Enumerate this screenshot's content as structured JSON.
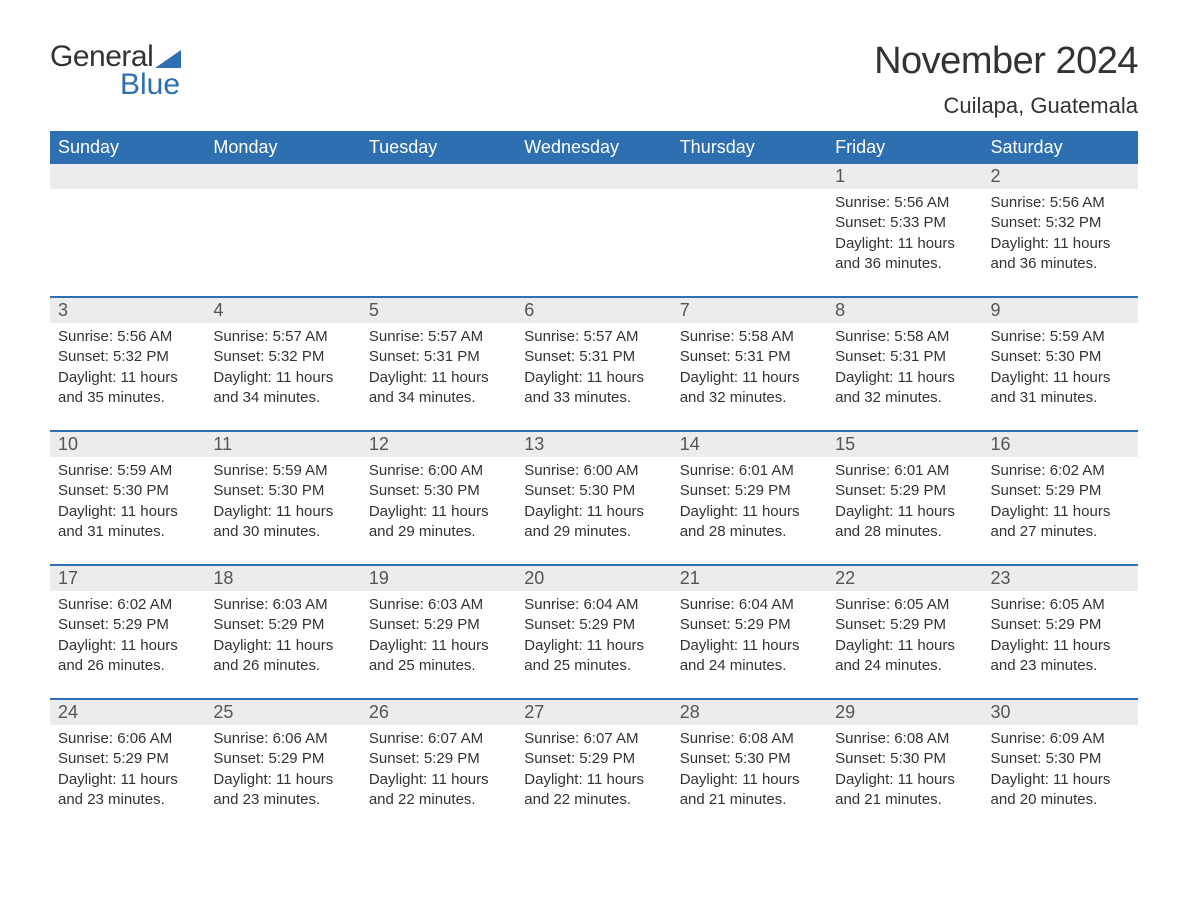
{
  "brand": {
    "part1": "General",
    "part2": "Blue"
  },
  "title": "November 2024",
  "location": "Cuilapa, Guatemala",
  "colors": {
    "header_bg": "#2d6fb1",
    "header_text": "#ffffff",
    "daynum_bg": "#ececec",
    "border": "#2d6fb1",
    "body_text": "#333333",
    "page_bg": "#ffffff"
  },
  "typography": {
    "title_fontsize": 38,
    "location_fontsize": 22,
    "header_fontsize": 18,
    "daynum_fontsize": 18,
    "cell_fontsize": 15,
    "font_family": "Arial"
  },
  "layout": {
    "columns": 7,
    "rows": 5
  },
  "weekdays": [
    "Sunday",
    "Monday",
    "Tuesday",
    "Wednesday",
    "Thursday",
    "Friday",
    "Saturday"
  ],
  "weeks": [
    [
      {
        "day": "",
        "sunrise": "",
        "sunset": "",
        "daylight": ""
      },
      {
        "day": "",
        "sunrise": "",
        "sunset": "",
        "daylight": ""
      },
      {
        "day": "",
        "sunrise": "",
        "sunset": "",
        "daylight": ""
      },
      {
        "day": "",
        "sunrise": "",
        "sunset": "",
        "daylight": ""
      },
      {
        "day": "",
        "sunrise": "",
        "sunset": "",
        "daylight": ""
      },
      {
        "day": "1",
        "sunrise": "Sunrise: 5:56 AM",
        "sunset": "Sunset: 5:33 PM",
        "daylight": "Daylight: 11 hours and 36 minutes."
      },
      {
        "day": "2",
        "sunrise": "Sunrise: 5:56 AM",
        "sunset": "Sunset: 5:32 PM",
        "daylight": "Daylight: 11 hours and 36 minutes."
      }
    ],
    [
      {
        "day": "3",
        "sunrise": "Sunrise: 5:56 AM",
        "sunset": "Sunset: 5:32 PM",
        "daylight": "Daylight: 11 hours and 35 minutes."
      },
      {
        "day": "4",
        "sunrise": "Sunrise: 5:57 AM",
        "sunset": "Sunset: 5:32 PM",
        "daylight": "Daylight: 11 hours and 34 minutes."
      },
      {
        "day": "5",
        "sunrise": "Sunrise: 5:57 AM",
        "sunset": "Sunset: 5:31 PM",
        "daylight": "Daylight: 11 hours and 34 minutes."
      },
      {
        "day": "6",
        "sunrise": "Sunrise: 5:57 AM",
        "sunset": "Sunset: 5:31 PM",
        "daylight": "Daylight: 11 hours and 33 minutes."
      },
      {
        "day": "7",
        "sunrise": "Sunrise: 5:58 AM",
        "sunset": "Sunset: 5:31 PM",
        "daylight": "Daylight: 11 hours and 32 minutes."
      },
      {
        "day": "8",
        "sunrise": "Sunrise: 5:58 AM",
        "sunset": "Sunset: 5:31 PM",
        "daylight": "Daylight: 11 hours and 32 minutes."
      },
      {
        "day": "9",
        "sunrise": "Sunrise: 5:59 AM",
        "sunset": "Sunset: 5:30 PM",
        "daylight": "Daylight: 11 hours and 31 minutes."
      }
    ],
    [
      {
        "day": "10",
        "sunrise": "Sunrise: 5:59 AM",
        "sunset": "Sunset: 5:30 PM",
        "daylight": "Daylight: 11 hours and 31 minutes."
      },
      {
        "day": "11",
        "sunrise": "Sunrise: 5:59 AM",
        "sunset": "Sunset: 5:30 PM",
        "daylight": "Daylight: 11 hours and 30 minutes."
      },
      {
        "day": "12",
        "sunrise": "Sunrise: 6:00 AM",
        "sunset": "Sunset: 5:30 PM",
        "daylight": "Daylight: 11 hours and 29 minutes."
      },
      {
        "day": "13",
        "sunrise": "Sunrise: 6:00 AM",
        "sunset": "Sunset: 5:30 PM",
        "daylight": "Daylight: 11 hours and 29 minutes."
      },
      {
        "day": "14",
        "sunrise": "Sunrise: 6:01 AM",
        "sunset": "Sunset: 5:29 PM",
        "daylight": "Daylight: 11 hours and 28 minutes."
      },
      {
        "day": "15",
        "sunrise": "Sunrise: 6:01 AM",
        "sunset": "Sunset: 5:29 PM",
        "daylight": "Daylight: 11 hours and 28 minutes."
      },
      {
        "day": "16",
        "sunrise": "Sunrise: 6:02 AM",
        "sunset": "Sunset: 5:29 PM",
        "daylight": "Daylight: 11 hours and 27 minutes."
      }
    ],
    [
      {
        "day": "17",
        "sunrise": "Sunrise: 6:02 AM",
        "sunset": "Sunset: 5:29 PM",
        "daylight": "Daylight: 11 hours and 26 minutes."
      },
      {
        "day": "18",
        "sunrise": "Sunrise: 6:03 AM",
        "sunset": "Sunset: 5:29 PM",
        "daylight": "Daylight: 11 hours and 26 minutes."
      },
      {
        "day": "19",
        "sunrise": "Sunrise: 6:03 AM",
        "sunset": "Sunset: 5:29 PM",
        "daylight": "Daylight: 11 hours and 25 minutes."
      },
      {
        "day": "20",
        "sunrise": "Sunrise: 6:04 AM",
        "sunset": "Sunset: 5:29 PM",
        "daylight": "Daylight: 11 hours and 25 minutes."
      },
      {
        "day": "21",
        "sunrise": "Sunrise: 6:04 AM",
        "sunset": "Sunset: 5:29 PM",
        "daylight": "Daylight: 11 hours and 24 minutes."
      },
      {
        "day": "22",
        "sunrise": "Sunrise: 6:05 AM",
        "sunset": "Sunset: 5:29 PM",
        "daylight": "Daylight: 11 hours and 24 minutes."
      },
      {
        "day": "23",
        "sunrise": "Sunrise: 6:05 AM",
        "sunset": "Sunset: 5:29 PM",
        "daylight": "Daylight: 11 hours and 23 minutes."
      }
    ],
    [
      {
        "day": "24",
        "sunrise": "Sunrise: 6:06 AM",
        "sunset": "Sunset: 5:29 PM",
        "daylight": "Daylight: 11 hours and 23 minutes."
      },
      {
        "day": "25",
        "sunrise": "Sunrise: 6:06 AM",
        "sunset": "Sunset: 5:29 PM",
        "daylight": "Daylight: 11 hours and 23 minutes."
      },
      {
        "day": "26",
        "sunrise": "Sunrise: 6:07 AM",
        "sunset": "Sunset: 5:29 PM",
        "daylight": "Daylight: 11 hours and 22 minutes."
      },
      {
        "day": "27",
        "sunrise": "Sunrise: 6:07 AM",
        "sunset": "Sunset: 5:29 PM",
        "daylight": "Daylight: 11 hours and 22 minutes."
      },
      {
        "day": "28",
        "sunrise": "Sunrise: 6:08 AM",
        "sunset": "Sunset: 5:30 PM",
        "daylight": "Daylight: 11 hours and 21 minutes."
      },
      {
        "day": "29",
        "sunrise": "Sunrise: 6:08 AM",
        "sunset": "Sunset: 5:30 PM",
        "daylight": "Daylight: 11 hours and 21 minutes."
      },
      {
        "day": "30",
        "sunrise": "Sunrise: 6:09 AM",
        "sunset": "Sunset: 5:30 PM",
        "daylight": "Daylight: 11 hours and 20 minutes."
      }
    ]
  ]
}
